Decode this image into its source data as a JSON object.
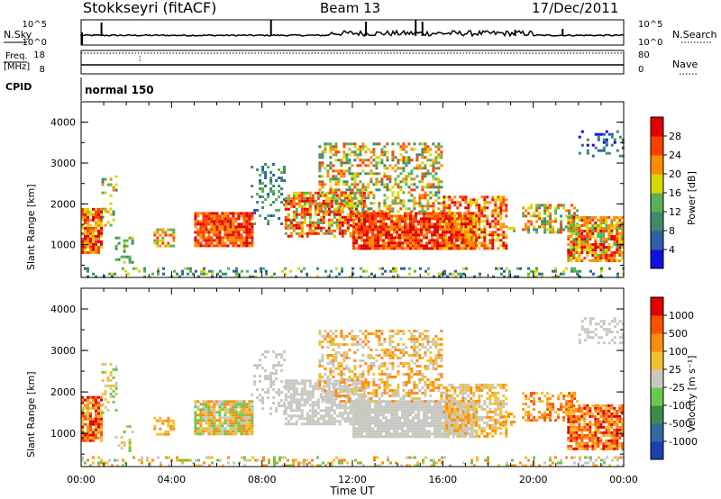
{
  "header": {
    "title": "Stokkseyri (fitACF)",
    "beam": "Beam 13",
    "date": "17/Dec/2011"
  },
  "status_panel": {
    "nsky_label": "N.Sky",
    "nsky_ticks": [
      "10^5",
      "10^0"
    ],
    "nsearch_label": "N.Search",
    "nsearch_ticks": [
      "10^5",
      "10^0"
    ],
    "freq_label": "Freq.",
    "freq_unit": "[MHz]",
    "freq_ticks": [
      "18",
      "8"
    ],
    "nave_label": "Nave",
    "nave_ticks": [
      "80",
      "0"
    ],
    "cpid_label": "CPID",
    "cpid_value": "normal 150"
  },
  "time_axis": {
    "label": "Time UT",
    "ticks": [
      "00:00",
      "04:00",
      "08:00",
      "12:00",
      "16:00",
      "20:00",
      "00:00"
    ]
  },
  "chart_data": [
    {
      "type": "heatmap",
      "name": "Power",
      "ylabel": "Slant Range [km]",
      "yticks": [
        "1000",
        "2000",
        "3000",
        "4000"
      ],
      "ylim": [
        200,
        4500
      ],
      "xlim_hours": [
        0,
        24
      ],
      "colorbar": {
        "label": "Power [dB]",
        "ticks": [
          "4",
          "8",
          "12",
          "16",
          "20",
          "24",
          "28"
        ],
        "colors": [
          "#1010e0",
          "#2f5fa8",
          "#3f8a6a",
          "#5ab055",
          "#d8d800",
          "#ff8c00",
          "#ff4000",
          "#e00000"
        ]
      }
    },
    {
      "type": "heatmap",
      "name": "Velocity",
      "ylabel": "Slant Range [km]",
      "yticks": [
        "1000",
        "2000",
        "3000",
        "4000"
      ],
      "ylim": [
        200,
        4500
      ],
      "xlim_hours": [
        0,
        24
      ],
      "colorbar": {
        "label": "Velocity [m s⁻¹]",
        "ticks": [
          "1000",
          "500",
          "100",
          "25",
          "-25",
          "-100",
          "-500",
          "-1000"
        ],
        "colors": [
          "#1a3fb0",
          "#2f6aa0",
          "#3f8a4a",
          "#6ac850",
          "#c8c8c0",
          "#f0c030",
          "#ff8c10",
          "#ff5000",
          "#e00000"
        ]
      }
    }
  ]
}
